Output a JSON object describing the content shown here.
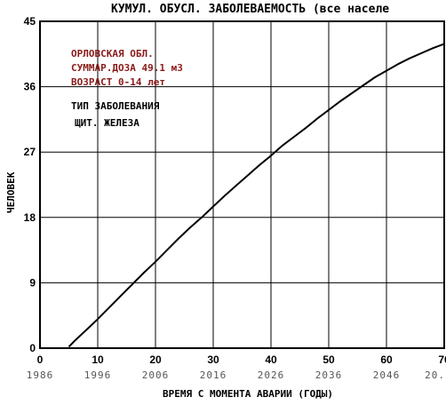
{
  "chart_data": {
    "type": "line",
    "title": "КУМУЛ. ОБУСЛ. ЗАБОЛЕВАЕМОСТЬ (все населе",
    "ylabel": "ЧЕЛОВЕК",
    "xlabel": "ВРЕМЯ С МОМЕНТА АВАРИИ (ГОДЫ)",
    "xlim": [
      0,
      70
    ],
    "ylim": [
      0,
      45
    ],
    "x_ticks": [
      "0",
      "10",
      "20",
      "30",
      "40",
      "50",
      "60",
      "70"
    ],
    "x_ticks_secondary": [
      "1986",
      "1996",
      "2006",
      "2016",
      "2026",
      "2036",
      "2046",
      "20."
    ],
    "y_ticks": [
      "0",
      "9",
      "18",
      "27",
      "36",
      "45"
    ],
    "grid": true,
    "annotations": [
      "ОРЛОВСКАЯ ОБЛ.",
      "СУММАР.ДОЗА  49.1 мЗ",
      "ВОЗРАСТ   0-14 лет",
      "ТИП ЗАБОЛЕВАНИЯ",
      "ЩИТ. ЖЕЛЕЗА"
    ],
    "series": [
      {
        "x": [
          5,
          6,
          8,
          10,
          12,
          14,
          16,
          18,
          20,
          22,
          24,
          26,
          28,
          30,
          32,
          34,
          36,
          38,
          40,
          42,
          44,
          46,
          48,
          50,
          52,
          54,
          56,
          58,
          60,
          62,
          64,
          66,
          68,
          70
        ],
        "values": [
          0.2,
          1.0,
          2.5,
          4.0,
          5.6,
          7.2,
          8.8,
          10.4,
          11.9,
          13.5,
          15.1,
          16.6,
          18.0,
          19.5,
          21.0,
          22.4,
          23.8,
          25.2,
          26.5,
          27.9,
          29.1,
          30.3,
          31.6,
          32.8,
          34.0,
          35.1,
          36.2,
          37.3,
          38.2,
          39.1,
          39.9,
          40.6,
          41.3,
          41.9
        ],
        "color": "#000000"
      }
    ]
  }
}
